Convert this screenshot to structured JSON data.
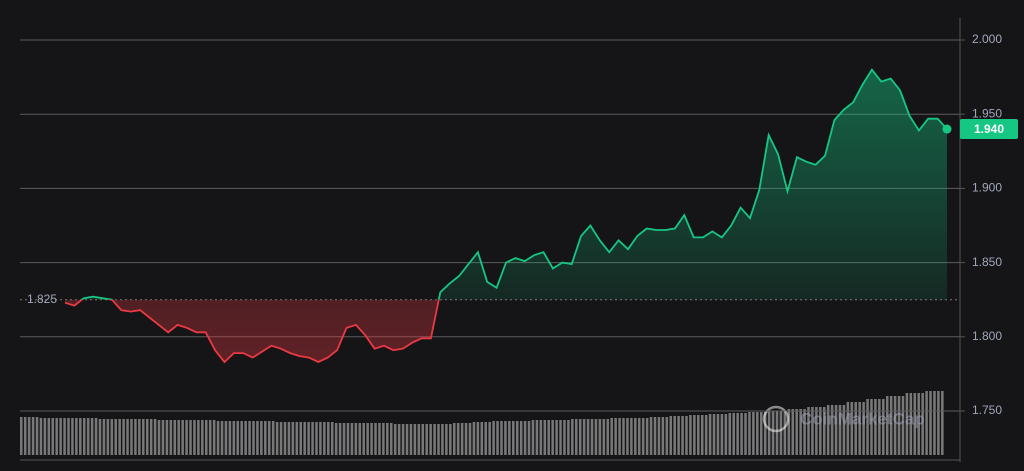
{
  "chart_data": {
    "type": "line",
    "watermark": "CoinMarketCap",
    "up_color": "#16c784",
    "down_color": "#ea3943",
    "baseline": {
      "value": 1.825,
      "label": "1.825"
    },
    "last_price": {
      "value": 1.94,
      "label": "1.940"
    },
    "ylim": [
      1.72,
      2.013
    ],
    "yticks": [
      {
        "value": 2,
        "label": "2.000"
      },
      {
        "value": 1.95,
        "label": "1.950"
      },
      {
        "value": 1.9,
        "label": "1.900"
      },
      {
        "value": 1.85,
        "label": "1.850"
      },
      {
        "value": 1.8,
        "label": "1.800"
      },
      {
        "value": 1.75,
        "label": "1.750"
      }
    ],
    "grid": true,
    "values": [
      1.823,
      1.821,
      1.826,
      1.827,
      1.826,
      1.825,
      1.818,
      1.817,
      1.818,
      1.813,
      1.808,
      1.803,
      1.808,
      1.806,
      1.803,
      1.803,
      1.791,
      1.783,
      1.789,
      1.789,
      1.786,
      1.79,
      1.794,
      1.792,
      1.789,
      1.787,
      1.786,
      1.783,
      1.786,
      1.791,
      1.806,
      1.808,
      1.801,
      1.792,
      1.794,
      1.791,
      1.792,
      1.796,
      1.799,
      1.799,
      1.83,
      1.836,
      1.841,
      1.849,
      1.857,
      1.837,
      1.833,
      1.85,
      1.853,
      1.851,
      1.855,
      1.857,
      1.846,
      1.85,
      1.849,
      1.868,
      1.875,
      1.865,
      1.857,
      1.865,
      1.859,
      1.868,
      1.873,
      1.872,
      1.872,
      1.873,
      1.882,
      1.867,
      1.867,
      1.871,
      1.867,
      1.875,
      1.887,
      1.88,
      1.899,
      1.936,
      1.923,
      1.898,
      1.921,
      1.918,
      1.916,
      1.922,
      1.946,
      1.953,
      1.958,
      1.97,
      1.98,
      1.972,
      1.974,
      1.966,
      1.949,
      1.939,
      1.947,
      1.947,
      1.94
    ],
    "volume": {
      "color": "#9a9a9a",
      "values": [
        38,
        37,
        37,
        37,
        36,
        36,
        36,
        35,
        35,
        35,
        34,
        34,
        34,
        33,
        33,
        33,
        32,
        32,
        32,
        31,
        31,
        31,
        32,
        33,
        34,
        34,
        35,
        35,
        36,
        36,
        37,
        37,
        38,
        39,
        40,
        41,
        42,
        43,
        44,
        46,
        48,
        50,
        53,
        56,
        59,
        62,
        64
      ]
    }
  }
}
